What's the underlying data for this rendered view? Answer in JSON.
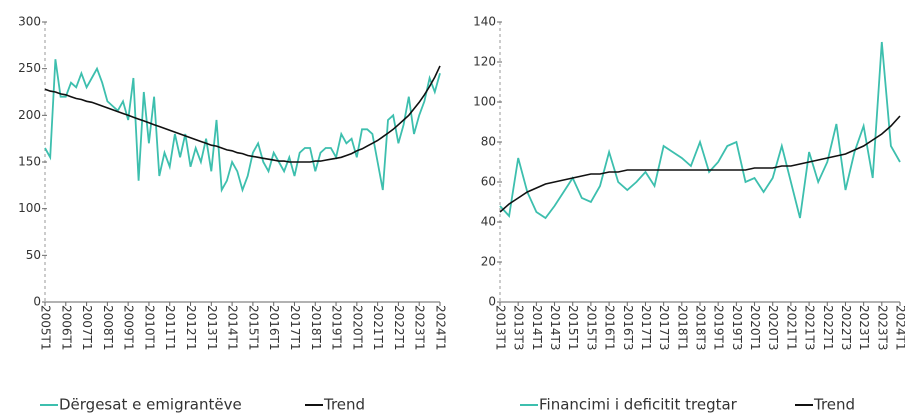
{
  "chart_data": [
    {
      "type": "line",
      "categories": [
        "2005T1",
        null,
        null,
        null,
        "2006T1",
        null,
        null,
        null,
        "2007T1",
        null,
        null,
        null,
        "2008T1",
        null,
        null,
        null,
        "2009T1",
        null,
        null,
        null,
        "2010T1",
        null,
        null,
        null,
        "2011T1",
        null,
        null,
        null,
        "2012T1",
        null,
        null,
        null,
        "2013T1",
        null,
        null,
        null,
        "2014T1",
        null,
        null,
        null,
        "2015T1",
        null,
        null,
        null,
        "2016T1",
        null,
        null,
        null,
        "2017T1",
        null,
        null,
        null,
        "2018T1",
        null,
        null,
        null,
        "2019T1",
        null,
        null,
        null,
        "2020T1",
        null,
        null,
        null,
        "2021T1",
        null,
        null,
        null,
        "2022T1",
        null,
        null,
        null,
        "2023T1",
        null,
        null,
        null,
        "2024T1"
      ],
      "series": [
        {
          "name": "Dërgesat e emigrantëve",
          "color": "#3dbfae",
          "values": [
            165,
            155,
            260,
            220,
            220,
            235,
            230,
            245,
            230,
            240,
            250,
            235,
            215,
            210,
            205,
            215,
            195,
            240,
            130,
            225,
            170,
            220,
            135,
            160,
            145,
            180,
            155,
            180,
            145,
            165,
            150,
            175,
            140,
            195,
            120,
            130,
            150,
            140,
            120,
            135,
            160,
            170,
            150,
            140,
            160,
            150,
            140,
            155,
            135,
            160,
            165,
            165,
            140,
            160,
            165,
            165,
            155,
            180,
            170,
            175,
            155,
            185,
            185,
            180,
            150,
            120,
            195,
            200,
            170,
            190,
            220,
            180,
            200,
            215,
            240,
            225,
            245
          ]
        },
        {
          "name": "Trend",
          "color": "#111111",
          "values": [
            228,
            226,
            225,
            223,
            222,
            220,
            218,
            217,
            215,
            214,
            212,
            210,
            208,
            206,
            204,
            202,
            200,
            198,
            196,
            194,
            192,
            190,
            188,
            186,
            184,
            182,
            180,
            178,
            176,
            174,
            172,
            170,
            168,
            167,
            165,
            163,
            162,
            160,
            159,
            157,
            156,
            155,
            154,
            153,
            152,
            151,
            151,
            150,
            150,
            150,
            150,
            150,
            151,
            151,
            152,
            153,
            154,
            155,
            157,
            159,
            162,
            164,
            167,
            170,
            173,
            177,
            181,
            185,
            190,
            195,
            200,
            207,
            214,
            222,
            231,
            241,
            253
          ]
        }
      ],
      "ylim": [
        0,
        300
      ],
      "yticks": [
        0,
        50,
        100,
        150,
        200,
        250,
        300
      ]
    },
    {
      "type": "line",
      "categories": [
        "2013T1",
        null,
        "2013T3",
        null,
        "2014T1",
        null,
        "2014T3",
        null,
        "2015T1",
        null,
        "2015T3",
        null,
        "2016T1",
        null,
        "2016T3",
        null,
        "2017T1",
        null,
        "2017T3",
        null,
        "2018T1",
        null,
        "2018T3",
        null,
        "2019T1",
        null,
        "2019T3",
        null,
        "2020T1",
        null,
        "2020T3",
        null,
        "2021T1",
        null,
        "2021T3",
        null,
        "2022T1",
        null,
        "2022T3",
        null,
        "2023T1",
        null,
        "2023T3",
        null,
        "2024T1"
      ],
      "series": [
        {
          "name": "Financimi i deficitit tregtar",
          "color": "#3dbfae",
          "values": [
            48,
            43,
            72,
            55,
            45,
            42,
            48,
            55,
            62,
            52,
            50,
            58,
            75,
            60,
            56,
            60,
            65,
            58,
            78,
            75,
            72,
            68,
            80,
            65,
            70,
            78,
            80,
            60,
            62,
            55,
            62,
            78,
            60,
            42,
            75,
            60,
            70,
            89,
            56,
            75,
            88,
            62,
            130,
            78,
            70
          ]
        },
        {
          "name": "Trend",
          "color": "#111111",
          "values": [
            45,
            49,
            52,
            55,
            57,
            59,
            60,
            61,
            62,
            63,
            64,
            64,
            65,
            65,
            66,
            66,
            66,
            66,
            66,
            66,
            66,
            66,
            66,
            66,
            66,
            66,
            66,
            66,
            67,
            67,
            67,
            68,
            68,
            69,
            70,
            71,
            72,
            73,
            74,
            76,
            78,
            81,
            84,
            88,
            93
          ]
        }
      ],
      "ylim": [
        0,
        140
      ],
      "yticks": [
        0,
        20,
        40,
        60,
        80,
        100,
        120,
        140
      ]
    }
  ]
}
